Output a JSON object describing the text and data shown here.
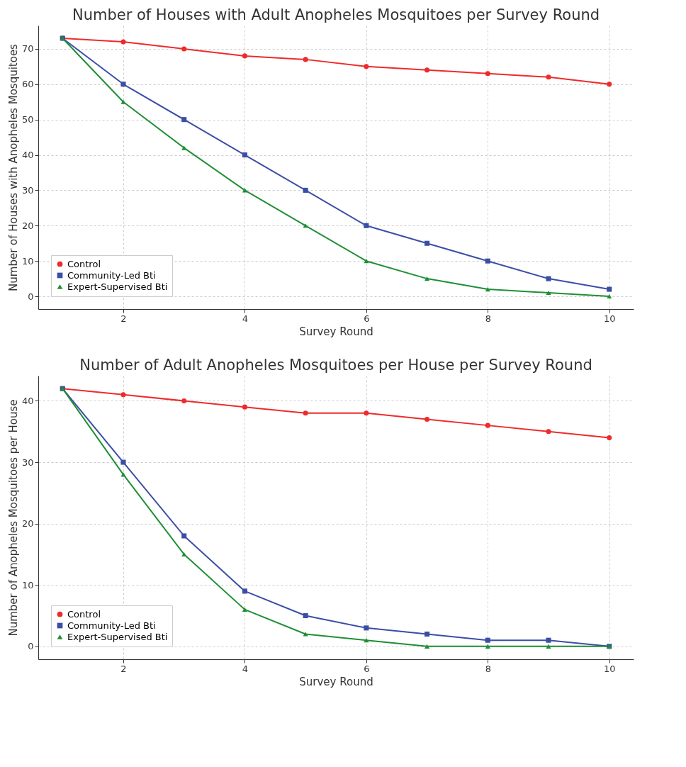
{
  "chart_data": [
    {
      "type": "line",
      "title": "Number of Houses with Adult Anopheles Mosquitoes per Survey Round",
      "xlabel": "Survey Round",
      "ylabel": "Number of Houses with Anopheles Mosquitoes",
      "x": [
        1,
        2,
        3,
        4,
        5,
        6,
        7,
        8,
        9,
        10
      ],
      "xlim": [
        0.6,
        10.4
      ],
      "xticks": [
        2,
        4,
        6,
        8,
        10
      ],
      "ylim": [
        -3.6,
        76.6
      ],
      "yticks": [
        0,
        10,
        20,
        30,
        40,
        50,
        60,
        70
      ],
      "grid": true,
      "legend": "bottom left",
      "line_style": "solid",
      "series": [
        {
          "name": "Control",
          "color": "#ee2b2b",
          "marker": "circle",
          "values": [
            73,
            72,
            70,
            68,
            67,
            65,
            64,
            63,
            62,
            60
          ]
        },
        {
          "name": "Community-Led Bti",
          "color": "#3b4ea6",
          "marker": "square",
          "values": [
            73,
            60,
            50,
            40,
            30,
            20,
            15,
            10,
            5,
            2
          ]
        },
        {
          "name": "Expert-Supervised Bti",
          "color": "#1f8f35",
          "marker": "triangle",
          "values": [
            73,
            55,
            42,
            30,
            20,
            10,
            5,
            2,
            1,
            0
          ]
        }
      ]
    },
    {
      "type": "line",
      "title": "Number of Adult Anopheles Mosquitoes per House per Survey Round",
      "xlabel": "Survey Round",
      "ylabel": "Number of Anopheles Mosquitoes per House",
      "x": [
        1,
        2,
        3,
        4,
        5,
        6,
        7,
        8,
        9,
        10
      ],
      "xlim": [
        0.6,
        10.4
      ],
      "xticks": [
        2,
        4,
        6,
        8,
        10
      ],
      "ylim": [
        -2.1,
        44.1
      ],
      "yticks": [
        0,
        10,
        20,
        30,
        40
      ],
      "grid": true,
      "legend": "bottom left",
      "line_style": "solid",
      "series": [
        {
          "name": "Control",
          "color": "#ee2b2b",
          "marker": "circle",
          "values": [
            42,
            41,
            40,
            39,
            38,
            38,
            37,
            36,
            35,
            34
          ]
        },
        {
          "name": "Community-Led Bti",
          "color": "#3b4ea6",
          "marker": "square",
          "values": [
            42,
            30,
            18,
            9,
            5,
            3,
            2,
            1,
            1,
            0
          ]
        },
        {
          "name": "Expert-Supervised Bti",
          "color": "#1f8f35",
          "marker": "triangle",
          "values": [
            42,
            28,
            15,
            6,
            2,
            1,
            0,
            0,
            0,
            0
          ]
        }
      ]
    }
  ]
}
